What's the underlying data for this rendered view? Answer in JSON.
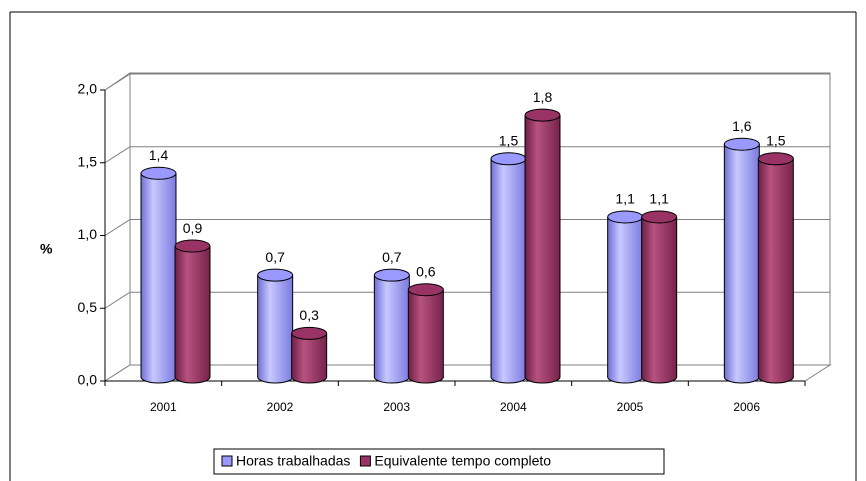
{
  "chart_data": {
    "type": "bar3d",
    "y_axis_label": "%",
    "categories": [
      "2001",
      "2002",
      "2003",
      "2004",
      "2005",
      "2006"
    ],
    "series": [
      {
        "name": "Horas trabalhadas",
        "color": "#9999ff",
        "values": [
          1.4,
          0.7,
          0.7,
          1.5,
          1.1,
          1.6
        ],
        "value_labels": [
          "1,4",
          "0,7",
          "0,7",
          "1,5",
          "1,1",
          "1,6"
        ]
      },
      {
        "name": "Equivalente tempo completo",
        "color": "#993366",
        "values": [
          0.9,
          0.3,
          0.6,
          1.8,
          1.1,
          1.5
        ],
        "value_labels": [
          "0,9",
          "0,3",
          "0,6",
          "1,8",
          "1,1",
          "1,5"
        ]
      }
    ],
    "ylim": [
      0,
      2
    ],
    "yticks": [
      {
        "value": 0,
        "label": "0,0"
      },
      {
        "value": 0.5,
        "label": "0,5"
      },
      {
        "value": 1,
        "label": "1,0"
      },
      {
        "value": 1.5,
        "label": "1,5"
      },
      {
        "value": 2,
        "label": "2,0"
      }
    ],
    "grid": true,
    "legend": "bottom"
  }
}
